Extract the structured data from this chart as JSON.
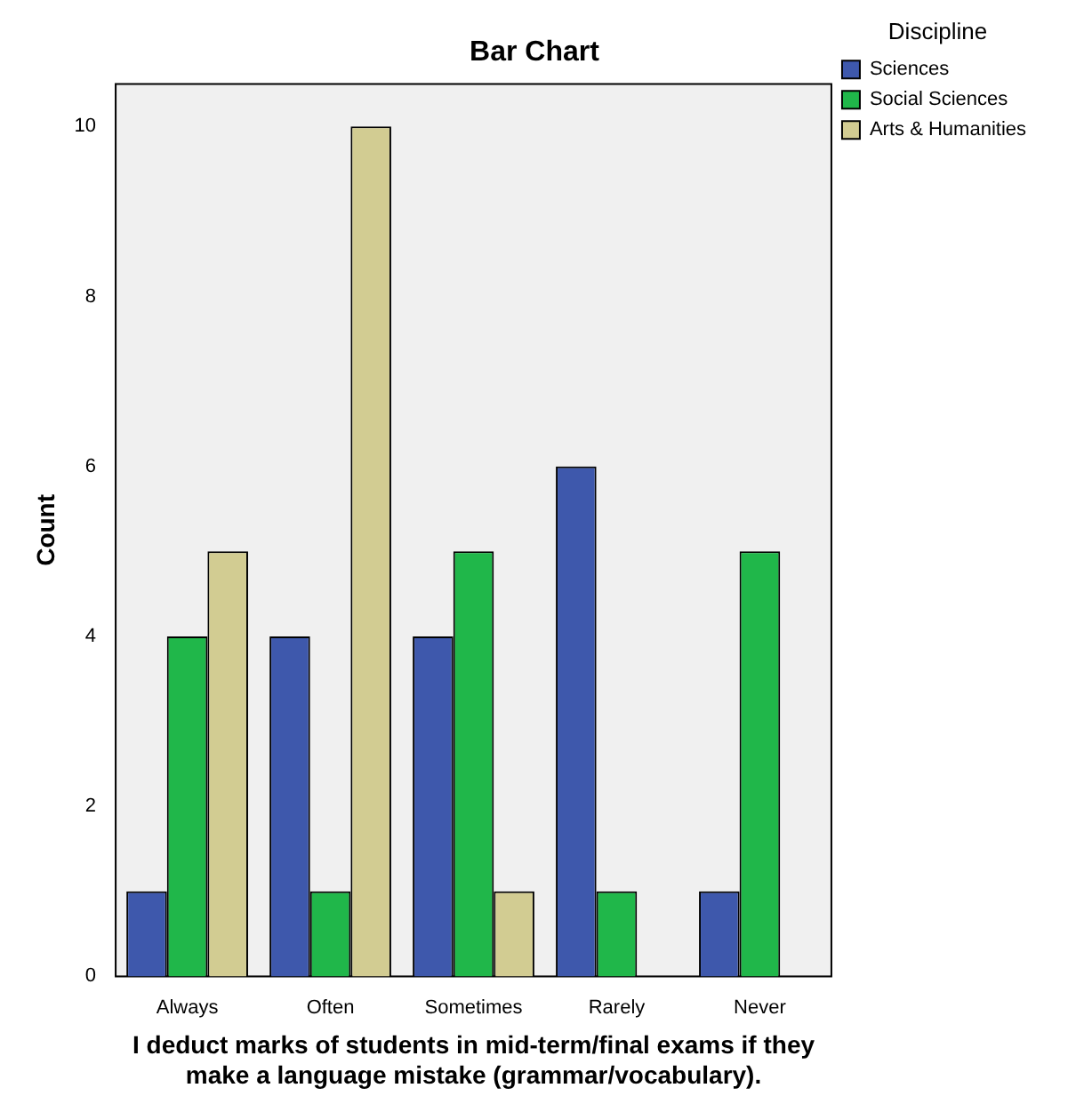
{
  "chart_data": {
    "type": "bar",
    "title": "Bar Chart",
    "xlabel": "I deduct marks of students in mid-term/final exams if they make a language mistake (grammar/vocabulary).",
    "ylabel": "Count",
    "legend_title": "Discipline",
    "categories": [
      "Always",
      "Often",
      "Sometimes",
      "Rarely",
      "Never"
    ],
    "series": [
      {
        "name": "Sciences",
        "color": "#3e58ac",
        "values": [
          1,
          4,
          4,
          6,
          1
        ]
      },
      {
        "name": "Social Sciences",
        "color": "#20b74a",
        "values": [
          4,
          1,
          5,
          1,
          5
        ]
      },
      {
        "name": "Arts & Humanities",
        "color": "#d2cc92",
        "values": [
          5,
          10,
          1,
          null,
          null
        ]
      }
    ],
    "ylim": [
      0,
      10.5
    ],
    "yticks": [
      0,
      2,
      4,
      6,
      8,
      10
    ],
    "grid": false,
    "legend": "right"
  }
}
